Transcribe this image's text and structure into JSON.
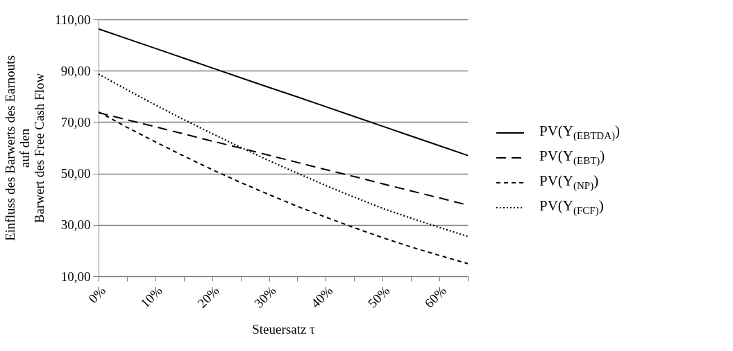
{
  "chart_data": {
    "type": "line",
    "xlabel": "Steuersatz τ",
    "ylabel": "Einfluss des Barwerts des Earnouts\nauf den\nBarwert des Free Cash Flow",
    "x": [
      0,
      5,
      10,
      15,
      20,
      25,
      30,
      35,
      40,
      45,
      50,
      55,
      60,
      65
    ],
    "series": [
      {
        "name": "PV(Y$_{(EBTDA)}$)",
        "color": "#000000",
        "line_style": "solid",
        "values": [
          106.3,
          102.5,
          98.7,
          94.9,
          91.1,
          87.3,
          83.5,
          79.8,
          76.0,
          72.2,
          68.4,
          64.6,
          60.8,
          57.0
        ]
      },
      {
        "name": "PV(Y$_{(EBT)}$)",
        "color": "#000000",
        "line_style": "dashed",
        "values": [
          73.7,
          70.9,
          68.2,
          65.4,
          62.6,
          59.9,
          57.1,
          54.3,
          51.5,
          48.8,
          46.0,
          43.2,
          40.5,
          37.7
        ]
      },
      {
        "name": "PV(Y$_{(NP)}$)",
        "color": "#000000",
        "line_style": "dashed",
        "values": [
          74.0,
          68.0,
          62.3,
          56.8,
          51.5,
          46.5,
          41.8,
          37.2,
          33.0,
          28.9,
          25.0,
          21.4,
          18.1,
          14.9
        ]
      },
      {
        "name": "PV(Y$_{(FCF)}$)",
        "color": "#000000",
        "line_style": "dotted",
        "values": [
          88.7,
          82.6,
          76.7,
          71.0,
          65.5,
          60.2,
          55.0,
          50.1,
          45.3,
          40.8,
          36.4,
          32.6,
          29.0,
          25.5
        ]
      }
    ],
    "xlim": [
      0,
      65
    ],
    "xticks": [
      {
        "value": 0,
        "label": "0%"
      },
      {
        "value": 5,
        "label": null
      },
      {
        "value": 10,
        "label": "10%"
      },
      {
        "value": 15,
        "label": null
      },
      {
        "value": 20,
        "label": "20%"
      },
      {
        "value": 25,
        "label": null
      },
      {
        "value": 30,
        "label": "30%"
      },
      {
        "value": 35,
        "label": null
      },
      {
        "value": 40,
        "label": "40%"
      },
      {
        "value": 45,
        "label": null
      },
      {
        "value": 50,
        "label": "50%"
      },
      {
        "value": 55,
        "label": null
      },
      {
        "value": 60,
        "label": "60%"
      },
      {
        "value": 65,
        "label": null
      }
    ],
    "ylim": [
      10,
      110
    ],
    "yticks": [
      {
        "value": 10,
        "label": "10,00"
      },
      {
        "value": 30,
        "label": "30,00"
      },
      {
        "value": 50,
        "label": "50,00"
      },
      {
        "value": 70,
        "label": "70,00"
      },
      {
        "value": 90,
        "label": "90,00"
      },
      {
        "value": 110,
        "label": "110,00"
      }
    ],
    "grid": "y",
    "legend": "right",
    "marker": "none"
  }
}
